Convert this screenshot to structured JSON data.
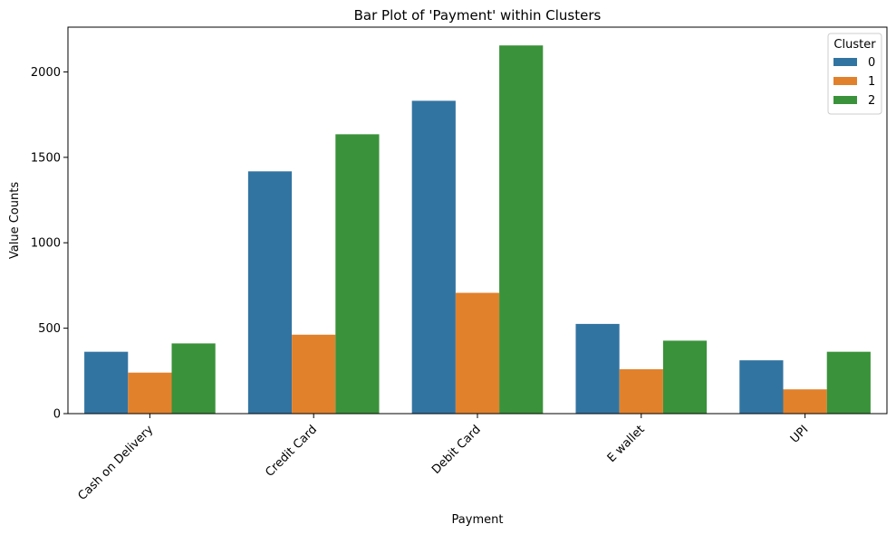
{
  "chart_data": {
    "type": "bar",
    "title": "Bar Plot of 'Payment' within Clusters",
    "xlabel": "Payment",
    "ylabel": "Value Counts",
    "categories": [
      "Cash on Delivery",
      "Credit Card",
      "Debit Card",
      "E wallet",
      "UPI"
    ],
    "series": [
      {
        "name": "0",
        "color": "#3274a1",
        "values": [
          362,
          1418,
          1831,
          525,
          312
        ]
      },
      {
        "name": "1",
        "color": "#e1812c",
        "values": [
          240,
          462,
          707,
          260,
          142
        ]
      },
      {
        "name": "2",
        "color": "#3a923a",
        "values": [
          411,
          1635,
          2155,
          427,
          362
        ]
      }
    ],
    "ylim": [
      0,
      2262
    ],
    "yticks": [
      0,
      500,
      1000,
      1500,
      2000
    ],
    "legend": {
      "title": "Cluster",
      "position": "top-right"
    },
    "grid": false
  }
}
